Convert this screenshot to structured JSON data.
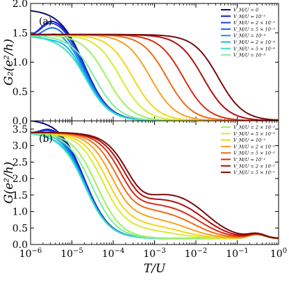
{
  "figure": {
    "xlabel": "T/U",
    "x_ticks": [
      {
        "base": "10",
        "exp": "−6"
      },
      {
        "base": "10",
        "exp": "−5"
      },
      {
        "base": "10",
        "exp": "−4"
      },
      {
        "base": "10",
        "exp": "−3"
      },
      {
        "base": "10",
        "exp": "−2"
      },
      {
        "base": "10",
        "exp": "−1"
      },
      {
        "base": "10",
        "exp": "0"
      }
    ]
  },
  "chart_data": [
    {
      "type": "line",
      "panel_label": "(a)",
      "ylabel": "G₂(e²/h)",
      "x_scale": "log",
      "xlim": [
        1e-06,
        1
      ],
      "ylim": [
        0,
        2
      ],
      "y_ticks": [
        "0.0",
        "0.5",
        "1.0",
        "1.5",
        "2.0"
      ],
      "legend_position": "top-right",
      "series": [
        {
          "name": "V_M/U = 0",
          "color": "#0b0a83",
          "low_T": 1.9,
          "rise": 1.9e-06,
          "plateau": 1.9,
          "bump": 0,
          "fall": 2e-05
        },
        {
          "name": "V_M/U = 10⁻⁵",
          "color": "#1515c8",
          "low_T": 1.45,
          "rise": 1.9e-06,
          "plateau": 1.87,
          "bump": 0,
          "fall": 2e-05
        },
        {
          "name": "V_M/U = 2 × 10⁻⁵",
          "color": "#1b3fe0",
          "low_T": 1.45,
          "rise": 1.9e-06,
          "plateau": 1.83,
          "bump": 0,
          "fall": 2e-05
        },
        {
          "name": "V_M/U = 5 × 10⁻⁵",
          "color": "#1a6ae8",
          "low_T": 1.45,
          "rise": 2.2e-06,
          "plateau": 1.76,
          "bump": 0,
          "fall": 2e-05
        },
        {
          "name": "V_M/U = 10⁻⁴",
          "color": "#1496e8",
          "low_T": 1.45,
          "rise": 3e-06,
          "plateau": 1.68,
          "bump": 0,
          "fall": 2e-05
        },
        {
          "name": "V_M/U = 2 × 10⁻⁴",
          "color": "#14bde0",
          "low_T": 1.45,
          "rise": 5e-06,
          "plateau": 1.59,
          "bump": 0,
          "fall": 2e-05
        },
        {
          "name": "V_M/U = 5 × 10⁻⁴",
          "color": "#3fdcc8",
          "low_T": 1.45,
          "rise": 9e-06,
          "plateau": 1.53,
          "bump": 0,
          "fall": 2e-05
        },
        {
          "name": "V_M/U = 10⁻³",
          "color": "#7aeea0",
          "low_T": 1.46,
          "rise": 1.5e-05,
          "plateau": 1.49,
          "bump": 0,
          "fall": 3.5e-05
        },
        {
          "name": "V_M/U = 2 × 10⁻³",
          "color": "#a0f060",
          "low_T": 1.47,
          "rise": 1e-09,
          "plateau": 1.47,
          "bump": 0,
          "fall": 7e-05
        },
        {
          "name": "V_M/U = 5 × 10⁻³",
          "color": "#d2ee30",
          "low_T": 1.47,
          "rise": 1e-09,
          "plateau": 1.47,
          "bump": 0,
          "fall": 0.00015
        },
        {
          "name": "V_M/U = 10⁻²",
          "color": "#f6d41a",
          "low_T": 1.47,
          "rise": 1e-09,
          "plateau": 1.47,
          "bump": 0,
          "fall": 0.0003
        },
        {
          "name": "V_M/U = 2 × 10⁻²",
          "color": "#f8a020",
          "low_T": 1.47,
          "rise": 1e-09,
          "plateau": 1.47,
          "bump": 0,
          "fall": 0.0008
        },
        {
          "name": "V_M/U = 5 × 10⁻²",
          "color": "#f06a14",
          "low_T": 1.47,
          "rise": 1e-09,
          "plateau": 1.47,
          "bump": 0,
          "fall": 0.002
        },
        {
          "name": "V_M/U = 10⁻¹",
          "color": "#dc2a10",
          "low_T": 1.47,
          "rise": 1e-09,
          "plateau": 1.47,
          "bump": 0,
          "fall": 0.005
        },
        {
          "name": "V_M/U = 2 × 10⁻¹",
          "color": "#b00e0e",
          "low_T": 1.47,
          "rise": 1e-09,
          "plateau": 1.47,
          "bump": 0,
          "fall": 0.015
        },
        {
          "name": "V_M/U = 5 × 10⁻¹",
          "color": "#7a0a0a",
          "low_T": 1.47,
          "rise": 1e-09,
          "plateau": 1.47,
          "bump": 0,
          "fall": 0.035
        }
      ],
      "legend": [
        {
          "label": "V_M/U = 0",
          "color": "#0b0a83"
        },
        {
          "label": "V_M/U = 10⁻⁵",
          "color": "#1515c8"
        },
        {
          "label": "V_M/U = 2 × 10⁻⁵",
          "color": "#1b3fe0"
        },
        {
          "label": "V_M/U = 5 × 10⁻⁵",
          "color": "#1a6ae8"
        },
        {
          "label": "V_M/U = 10⁻⁴",
          "color": "#1496e8"
        },
        {
          "label": "V_M/U = 2 × 10⁻⁴",
          "color": "#14bde0"
        },
        {
          "label": "V_M/U = 5 × 10⁻⁴",
          "color": "#3fdcc8"
        },
        {
          "label": "V_M/U = 10⁻³",
          "color": "#7aeea0"
        }
      ]
    },
    {
      "type": "line",
      "panel_label": "(b)",
      "ylabel": "G(e²/h)",
      "x_scale": "log",
      "xlim": [
        1e-06,
        1
      ],
      "ylim": [
        0,
        3.75
      ],
      "y_ticks": [
        "0.0",
        "0.5",
        "1.0",
        "1.5",
        "2.0",
        "2.5",
        "3.0",
        "3.5"
      ],
      "legend_position": "top-right",
      "series": [
        {
          "name": "V_M/U = 0",
          "color": "#0b0a83",
          "low_T": 3.8,
          "rise": 1.9e-06,
          "plateau": 3.8,
          "bump": 0,
          "fall": 2e-05,
          "tail": 0.18
        },
        {
          "name": "V_M/U = 10⁻⁵",
          "color": "#1515c8",
          "low_T": 3.4,
          "rise": 1.9e-06,
          "plateau": 3.75,
          "bump": 0,
          "fall": 2e-05,
          "tail": 0.18
        },
        {
          "name": "V_M/U = 2 × 10⁻⁵",
          "color": "#1b3fe0",
          "low_T": 3.4,
          "rise": 1.9e-06,
          "plateau": 3.7,
          "bump": 0,
          "fall": 2e-05,
          "tail": 0.18
        },
        {
          "name": "V_M/U = 5 × 10⁻⁵",
          "color": "#1a6ae8",
          "low_T": 3.4,
          "rise": 2.2e-06,
          "plateau": 3.62,
          "bump": 0,
          "fall": 2e-05,
          "tail": 0.18
        },
        {
          "name": "V_M/U = 10⁻⁴",
          "color": "#1496e8",
          "low_T": 3.4,
          "rise": 3e-06,
          "plateau": 3.55,
          "bump": 0,
          "fall": 2e-05,
          "tail": 0.18
        },
        {
          "name": "V_M/U = 2 × 10⁻⁴",
          "color": "#14bde0",
          "low_T": 3.4,
          "rise": 5e-06,
          "plateau": 3.48,
          "bump": 0,
          "fall": 2e-05,
          "tail": 0.18
        },
        {
          "name": "V_M/U = 5 × 10⁻⁴",
          "color": "#3fdcc8",
          "low_T": 3.4,
          "rise": 9e-06,
          "plateau": 3.44,
          "bump": 0,
          "fall": 2e-05,
          "tail": 0.18
        },
        {
          "name": "V_M/U = 10⁻³",
          "color": "#7aeea0",
          "low_T": 3.4,
          "rise": 1.5e-05,
          "plateau": 3.42,
          "bump": 0,
          "fall": 3e-05,
          "tail": 0.18
        },
        {
          "name": "V_M/U = 2 × 10⁻³",
          "color": "#a0f060",
          "low_T": 3.4,
          "rise": 1e-09,
          "plateau": 3.4,
          "bump": 0,
          "fall": 4e-05,
          "tail": 0.18
        },
        {
          "name": "V_M/U = 5 × 10⁻³",
          "color": "#d2ee30",
          "low_T": 3.4,
          "rise": 1e-09,
          "plateau": 3.4,
          "bump": 0.25,
          "fall": 6e-05,
          "tail": 0.18
        },
        {
          "name": "V_M/U = 10⁻²",
          "color": "#f6d41a",
          "low_T": 3.4,
          "rise": 1e-09,
          "plateau": 3.4,
          "bump": 0.4,
          "fall": 8e-05,
          "tail": 0.18
        },
        {
          "name": "V_M/U = 2 × 10⁻²",
          "color": "#f8a020",
          "low_T": 3.4,
          "rise": 1e-09,
          "plateau": 3.4,
          "bump": 0.6,
          "fall": 0.00011,
          "tail": 0.18
        },
        {
          "name": "V_M/U = 5 × 10⁻²",
          "color": "#f06a14",
          "low_T": 3.4,
          "rise": 1e-09,
          "plateau": 3.4,
          "bump": 0.85,
          "fall": 0.00015,
          "tail": 0.18
        },
        {
          "name": "V_M/U = 10⁻¹",
          "color": "#dc2a10",
          "low_T": 3.4,
          "rise": 1e-09,
          "plateau": 3.4,
          "bump": 1.05,
          "fall": 0.0002,
          "tail": 0.18
        },
        {
          "name": "V_M/U = 2 × 10⁻¹",
          "color": "#b00e0e",
          "low_T": 3.4,
          "rise": 1e-09,
          "plateau": 3.4,
          "bump": 1.25,
          "fall": 0.00025,
          "tail": 0.18
        },
        {
          "name": "V_M/U = 5 × 10⁻¹",
          "color": "#7a0a0a",
          "low_T": 3.4,
          "rise": 1e-09,
          "plateau": 3.4,
          "bump": 1.45,
          "fall": 0.0003,
          "tail": 0.18
        }
      ],
      "legend": [
        {
          "label": "V_M/U = 2 × 10⁻³",
          "color": "#a0f060"
        },
        {
          "label": "V_M/U = 5 × 10⁻³",
          "color": "#d2ee30"
        },
        {
          "label": "V_M/U = 10⁻²",
          "color": "#f6d41a"
        },
        {
          "label": "V_M/U = 2 × 10⁻²",
          "color": "#f8a020"
        },
        {
          "label": "V_M/U = 5 × 10⁻²",
          "color": "#f06a14"
        },
        {
          "label": "V_M/U = 10⁻¹",
          "color": "#dc2a10"
        },
        {
          "label": "V_M/U = 2 × 10⁻¹",
          "color": "#b00e0e"
        },
        {
          "label": "V_M/U = 5 × 10⁻¹",
          "color": "#7a0a0a"
        }
      ]
    }
  ]
}
